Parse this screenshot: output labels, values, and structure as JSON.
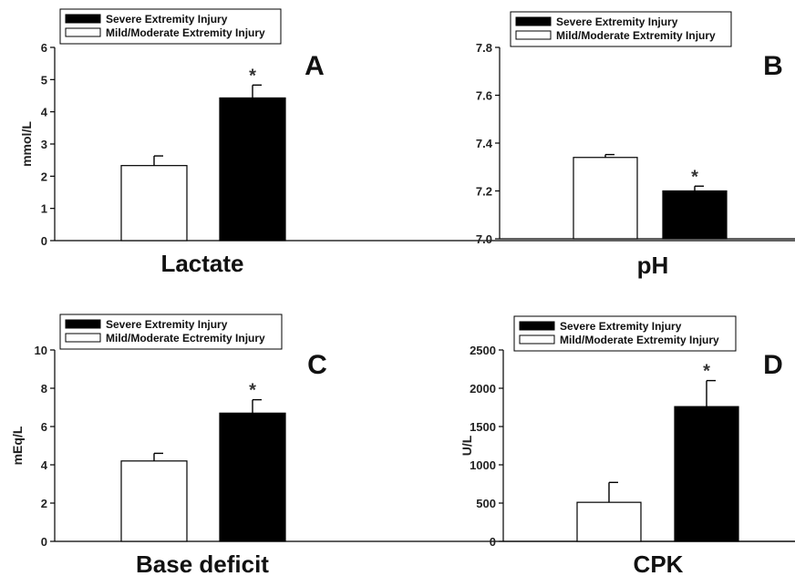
{
  "chart_data": [
    {
      "type": "bar",
      "panel": "A",
      "xlabel": "Lactate",
      "ylabel": "mmol/L",
      "ylim": [
        0,
        6
      ],
      "yticks": [
        "0",
        "1",
        "2",
        "3",
        "4",
        "5",
        "6"
      ],
      "legend": [
        "Severe Extremity Injury",
        "Mild/Moderate Extremity Injury"
      ],
      "legend_position": "top",
      "series": [
        {
          "name": "Mild/Moderate Extremity Injury",
          "value": 2.33,
          "error": 0.3,
          "color": "#ffffff"
        },
        {
          "name": "Severe Extremity Injury",
          "value": 4.43,
          "error": 0.4,
          "color": "#000000",
          "marker": "*"
        }
      ]
    },
    {
      "type": "bar",
      "panel": "B",
      "xlabel": "pH",
      "ylabel": "",
      "ylim": [
        7.0,
        7.8
      ],
      "yticks": [
        "7.0",
        "7.2",
        "7.4",
        "7.6",
        "7.8"
      ],
      "legend": [
        "Severe Extremity Injury",
        "Mild/Moderate Extremity Injury"
      ],
      "legend_position": "top",
      "series": [
        {
          "name": "Mild/Moderate Extremity Injury",
          "value": 7.34,
          "error": 0.012,
          "color": "#ffffff"
        },
        {
          "name": "Severe Extremity Injury",
          "value": 7.2,
          "error": 0.02,
          "color": "#000000",
          "marker": "*"
        }
      ]
    },
    {
      "type": "bar",
      "panel": "C",
      "xlabel": "Base deficit",
      "ylabel": "mEq/L",
      "ylim": [
        0,
        10
      ],
      "yticks": [
        "0",
        "2",
        "4",
        "6",
        "8",
        "10"
      ],
      "legend": [
        "Severe Extremity Injury",
        "Mild/Moderate Ectremity Injury"
      ],
      "legend_position": "top",
      "series": [
        {
          "name": "Mild/Moderate Ectremity Injury",
          "value": 4.2,
          "error": 0.4,
          "color": "#ffffff"
        },
        {
          "name": "Severe Extremity Injury",
          "value": 6.7,
          "error": 0.7,
          "color": "#000000",
          "marker": "*"
        }
      ]
    },
    {
      "type": "bar",
      "panel": "D",
      "xlabel": "CPK",
      "ylabel": "U/L",
      "ylim": [
        0,
        2500
      ],
      "yticks": [
        "0",
        "500",
        "1000",
        "1500",
        "2000",
        "2500"
      ],
      "legend": [
        "Severe Extremity Injury",
        "Mild/Moderate Extremity Injury"
      ],
      "legend_position": "top",
      "series": [
        {
          "name": "Mild/Moderate Extremity Injury",
          "value": 510,
          "error": 260,
          "color": "#ffffff"
        },
        {
          "name": "Severe Extremity Injury",
          "value": 1760,
          "error": 340,
          "color": "#000000",
          "marker": "*"
        }
      ]
    }
  ]
}
